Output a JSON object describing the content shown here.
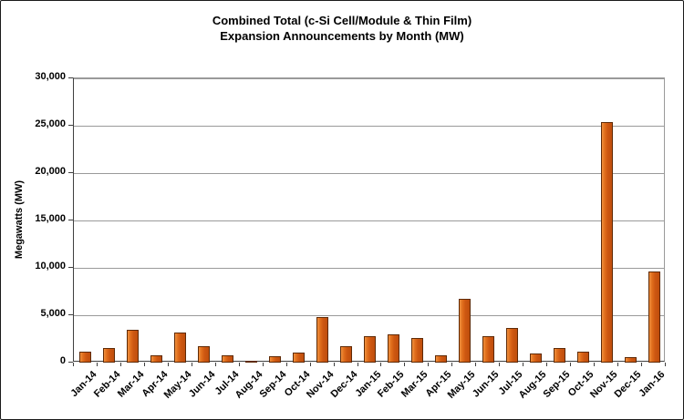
{
  "title": {
    "line1": "Combined Total (c-Si Cell/Module & Thin Film)",
    "line2": "Expansion Announcements by Month (MW)"
  },
  "chart_data": {
    "type": "bar",
    "title": "Combined Total (c-Si Cell/Module & Thin Film) Expansion Announcements by Month (MW)",
    "xlabel": "",
    "ylabel": "Megawatts (MW)",
    "ylim": [
      0,
      30000
    ],
    "ytick_step": 5000,
    "ytick_labels": [
      "0",
      "5,000",
      "10,000",
      "15,000",
      "20,000",
      "25,000",
      "30,000"
    ],
    "grid": true,
    "legend": false,
    "categories": [
      "Jan-14",
      "Feb-14",
      "Mar-14",
      "Apr-14",
      "May-14",
      "Jun-14",
      "Jul-14",
      "Aug-14",
      "Sep-14",
      "Oct-14",
      "Nov-14",
      "Dec-14",
      "Jan-15",
      "Feb-15",
      "Mar-15",
      "Apr-15",
      "May-15",
      "Jun-15",
      "Jul-15",
      "Aug-15",
      "Sep-15",
      "Oct-15",
      "Nov-15",
      "Dec-15",
      "Jan-16"
    ],
    "values": [
      1150,
      1500,
      3450,
      750,
      3150,
      1750,
      800,
      150,
      650,
      1100,
      4850,
      1700,
      2750,
      3000,
      2600,
      750,
      6750,
      2750,
      3650,
      1000,
      1500,
      1200,
      25400,
      550,
      9600
    ]
  },
  "colors": {
    "bar_fill": "#CD5711",
    "bar_highlight": "#F0913F",
    "bar_border": "#5F2A06",
    "gridline": "#9A9A9A",
    "axis_line": "#404040",
    "text": "#000000",
    "background": "#FFFFFF",
    "frame_border": "#1A1A1A"
  }
}
